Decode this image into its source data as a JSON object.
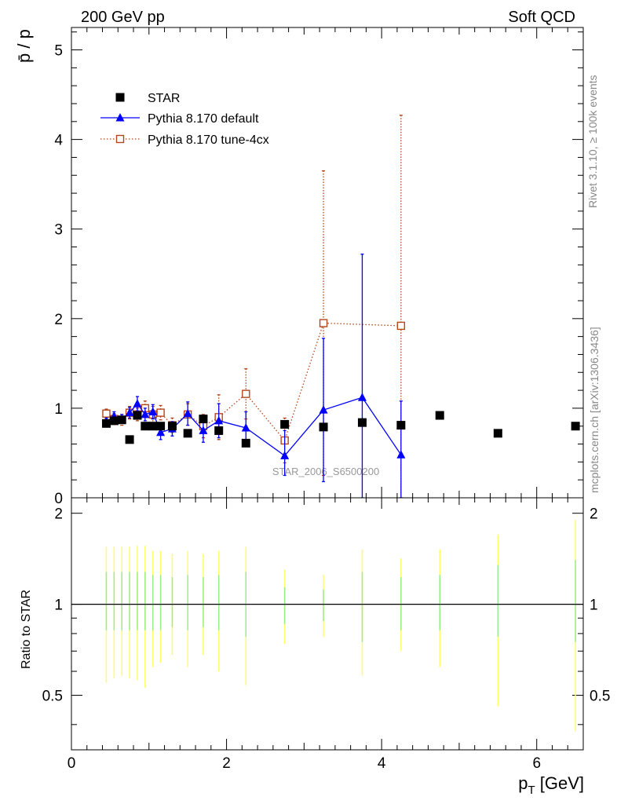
{
  "header": {
    "left": "200 GeV pp",
    "right": "Soft QCD"
  },
  "side_labels": {
    "rivet": "Rivet 3.1.10, ≥ 100k events",
    "mcplots": "mcplots.cern.ch [arXiv:1306.3436]"
  },
  "watermark": "STAR_2006_S6500200",
  "chart_data": {
    "type": "scatter",
    "xlabel": "p_T [GeV]",
    "ylabel": "p̄ / p",
    "xlim": [
      0,
      6.6
    ],
    "ylim": [
      0,
      5.25
    ],
    "ratio_ylabel": "Ratio to STAR",
    "ratio_ylim": [
      0.33,
      2.25
    ],
    "x_ticks": [
      "0",
      "2",
      "4",
      "6"
    ],
    "y_ticks": [
      "0",
      "1",
      "2",
      "3",
      "4",
      "5"
    ],
    "ratio_ticks": [
      "0.5",
      "1",
      "2"
    ],
    "legend_position": "top-left",
    "series": [
      {
        "name": "STAR",
        "color": "#000000",
        "marker": "square-filled",
        "x": [
          0.45,
          0.55,
          0.65,
          0.75,
          0.85,
          0.95,
          1.05,
          1.15,
          1.3,
          1.5,
          1.7,
          1.9,
          2.25,
          2.75,
          3.25,
          3.75,
          4.25,
          4.75,
          5.5,
          6.5
        ],
        "y": [
          0.83,
          0.86,
          0.87,
          0.65,
          0.92,
          0.8,
          0.8,
          0.8,
          0.8,
          0.72,
          0.88,
          0.75,
          0.61,
          0.82,
          0.79,
          0.84,
          0.81,
          0.92,
          0.72,
          0.8
        ]
      },
      {
        "name": "Pythia 8.170 default",
        "color": "#0000ff",
        "marker": "triangle-filled",
        "line": "solid",
        "x": [
          0.45,
          0.55,
          0.65,
          0.75,
          0.85,
          0.95,
          1.05,
          1.15,
          1.3,
          1.5,
          1.7,
          1.9,
          2.25,
          2.75,
          3.25,
          3.75,
          4.25
        ],
        "y": [
          0.85,
          0.91,
          0.88,
          0.95,
          1.05,
          0.93,
          0.96,
          0.73,
          0.77,
          0.94,
          0.75,
          0.86,
          0.78,
          0.47,
          0.98,
          1.12,
          0.48
        ],
        "err_up": [
          0.04,
          0.05,
          0.05,
          0.06,
          0.08,
          0.07,
          0.08,
          0.08,
          0.08,
          0.13,
          0.13,
          0.19,
          0.18,
          0.28,
          0.8,
          1.6,
          0.6
        ],
        "err_down": [
          0.04,
          0.05,
          0.05,
          0.06,
          0.08,
          0.07,
          0.08,
          0.08,
          0.08,
          0.13,
          0.13,
          0.19,
          0.18,
          0.22,
          0.8,
          1.12,
          0.48
        ]
      },
      {
        "name": "Pythia 8.170 tune-4cx",
        "color": "#b5451b",
        "marker": "square-open",
        "line": "dotted",
        "x": [
          0.45,
          0.55,
          0.65,
          0.75,
          0.85,
          0.95,
          1.05,
          1.15,
          1.3,
          1.5,
          1.7,
          1.9,
          2.25,
          2.75,
          3.25,
          4.25
        ],
        "y": [
          0.94,
          0.88,
          0.87,
          0.95,
          0.93,
          1.0,
          0.93,
          0.95,
          0.81,
          0.93,
          0.8,
          0.9,
          1.16,
          0.64,
          1.95,
          1.92
        ],
        "err_up": [
          0.05,
          0.06,
          0.06,
          0.07,
          0.07,
          0.08,
          0.09,
          0.08,
          0.08,
          0.12,
          0.13,
          0.25,
          0.28,
          0.25,
          1.7,
          2.35
        ],
        "err_down": [
          0.05,
          0.06,
          0.06,
          0.07,
          0.07,
          0.08,
          0.09,
          0.08,
          0.08,
          0.12,
          0.13,
          0.25,
          0.28,
          0.25,
          1.7,
          1.92
        ]
      }
    ],
    "ratio_band": {
      "x": [
        0.45,
        0.55,
        0.65,
        0.75,
        0.85,
        0.95,
        1.05,
        1.15,
        1.3,
        1.5,
        1.7,
        1.9,
        2.25,
        2.75,
        3.25,
        3.75,
        4.25,
        4.75,
        5.5,
        6.5
      ],
      "stat_up": [
        1.28,
        1.28,
        1.28,
        1.28,
        1.28,
        1.28,
        1.25,
        1.25,
        1.23,
        1.25,
        1.23,
        1.25,
        1.28,
        1.14,
        1.12,
        1.28,
        1.23,
        1.25,
        1.35,
        1.4
      ],
      "stat_down": [
        0.82,
        0.82,
        0.82,
        0.82,
        0.82,
        0.82,
        0.82,
        0.82,
        0.84,
        0.82,
        0.84,
        0.82,
        0.78,
        0.86,
        0.88,
        0.75,
        0.82,
        0.82,
        0.78,
        0.75
      ],
      "tot_up": [
        1.55,
        1.55,
        1.55,
        1.55,
        1.56,
        1.56,
        1.5,
        1.5,
        1.47,
        1.5,
        1.47,
        1.5,
        1.55,
        1.3,
        1.25,
        1.52,
        1.42,
        1.52,
        1.7,
        1.9
      ],
      "tot_down": [
        0.55,
        0.57,
        0.58,
        0.57,
        0.56,
        0.53,
        0.62,
        0.64,
        0.68,
        0.62,
        0.68,
        0.6,
        0.54,
        0.74,
        0.78,
        0.58,
        0.7,
        0.62,
        0.46,
        0.38
      ]
    }
  }
}
